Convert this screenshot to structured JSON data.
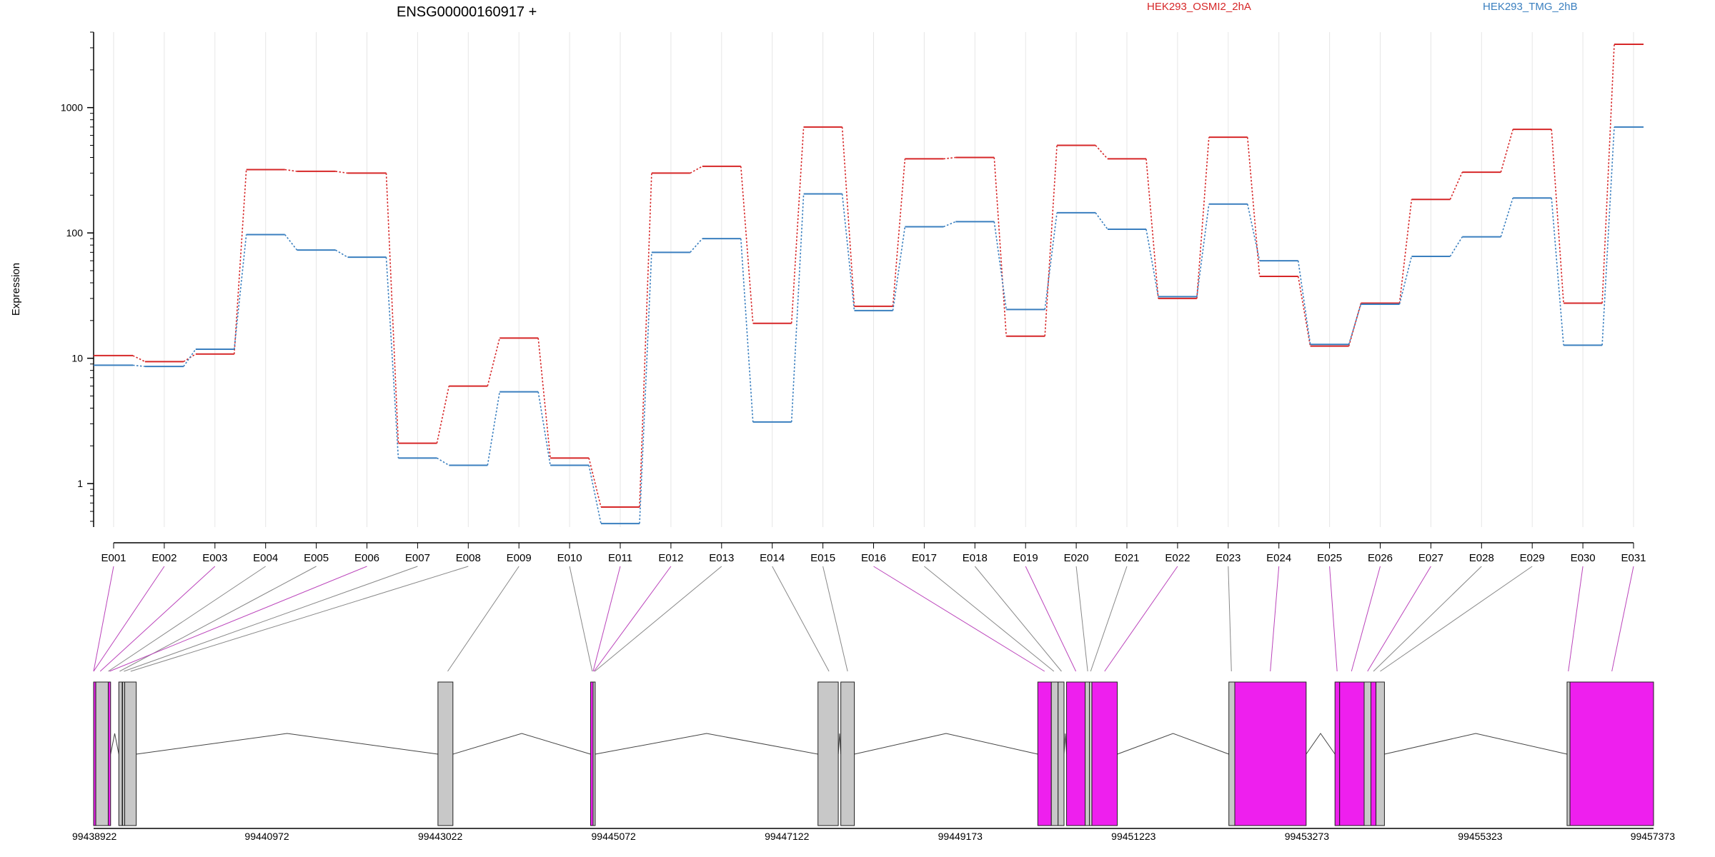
{
  "chart_data": {
    "type": "line",
    "title": "ENSG00000160917 +",
    "ylabel": "Expression",
    "yscale": "log",
    "ylim": [
      0.45,
      4000
    ],
    "y_ticks": [
      {
        "value": 1,
        "label": "1"
      },
      {
        "value": 10,
        "label": "10"
      },
      {
        "value": 100,
        "label": "100"
      },
      {
        "value": 1000,
        "label": "1000"
      }
    ],
    "categories": [
      "E001",
      "E002",
      "E003",
      "E004",
      "E005",
      "E006",
      "E007",
      "E008",
      "E009",
      "E010",
      "E011",
      "E012",
      "E013",
      "E014",
      "E015",
      "E016",
      "E017",
      "E018",
      "E019",
      "E020",
      "E021",
      "E022",
      "E023",
      "E024",
      "E025",
      "E026",
      "E027",
      "E028",
      "E029",
      "E030",
      "E031"
    ],
    "series": [
      {
        "name": "HEK293_OSMI2_2hA",
        "color": "#d62728",
        "values": [
          10.5,
          9.4,
          10.8,
          320,
          310,
          300,
          2.1,
          6.0,
          14.5,
          1.6,
          0.65,
          300,
          340,
          19,
          700,
          26,
          390,
          400,
          15,
          500,
          390,
          30,
          580,
          45,
          12.5,
          27.5,
          185,
          305,
          670,
          27.5,
          3200
        ]
      },
      {
        "name": "HEK293_TMG_2hB",
        "color": "#3a7fbf",
        "values": [
          8.8,
          8.6,
          11.8,
          97,
          73,
          64,
          1.6,
          1.4,
          5.4,
          1.4,
          0.48,
          70,
          90,
          3.1,
          205,
          24,
          112,
          123,
          24.5,
          145,
          107,
          31,
          170,
          60,
          12.9,
          27,
          65,
          93,
          190,
          12.7,
          700
        ]
      }
    ],
    "legend_position": "top",
    "grid": "vertical-only"
  },
  "gene_model": {
    "coord_min": 99438922,
    "coord_max": 99457373,
    "coordinate_labels": [
      "99438922",
      "99440972",
      "99443022",
      "99445072",
      "99447122",
      "99449173",
      "99451223",
      "99453273",
      "99455323",
      "99457373"
    ],
    "colors": {
      "exon_default": "#c8c8c8",
      "exon_highlight": "#ee1fee",
      "link_default": "#888888",
      "link_highlight": "#bb44bb"
    },
    "exon_coords": [
      [
        99438922,
        99438948,
        "highlight"
      ],
      [
        99438948,
        99439095,
        "default"
      ],
      [
        99439095,
        99439123,
        "highlight"
      ],
      [
        99439220,
        99439260,
        "default"
      ],
      [
        99439265,
        99439290,
        "default"
      ],
      [
        99439290,
        99439426,
        "default"
      ],
      [
        99442995,
        99443172,
        "default"
      ],
      [
        99444800,
        99444830,
        "highlight"
      ],
      [
        99444830,
        99444855,
        "default"
      ],
      [
        99447490,
        99447730,
        "default"
      ],
      [
        99447760,
        99447920,
        "default"
      ],
      [
        99450090,
        99450250,
        "highlight"
      ],
      [
        99450250,
        99450330,
        "default"
      ],
      [
        99450330,
        99450400,
        "default"
      ],
      [
        99450430,
        99450650,
        "highlight"
      ],
      [
        99450650,
        99450700,
        "default"
      ],
      [
        99450700,
        99450730,
        "default"
      ],
      [
        99450730,
        99451030,
        "highlight"
      ],
      [
        99452350,
        99452420,
        "default"
      ],
      [
        99452420,
        99453264,
        "highlight"
      ],
      [
        99453605,
        99453660,
        "highlight"
      ],
      [
        99453660,
        99453950,
        "highlight"
      ],
      [
        99453950,
        99454030,
        "default"
      ],
      [
        99454030,
        99454090,
        "highlight"
      ],
      [
        99454090,
        99454190,
        "default"
      ],
      [
        99456350,
        99456385,
        "default"
      ],
      [
        99456385,
        99457373,
        "highlight"
      ]
    ],
    "exon_links": [
      [
        99438922,
        "highlight"
      ],
      [
        99438922,
        "highlight"
      ],
      [
        99439000,
        "highlight"
      ],
      [
        99439095,
        "default"
      ],
      [
        99439230,
        "default"
      ],
      [
        99439110,
        "highlight"
      ],
      [
        99439280,
        "default"
      ],
      [
        99439360,
        "default"
      ],
      [
        99443110,
        "default"
      ],
      [
        99444820,
        "default"
      ],
      [
        99444830,
        "highlight"
      ],
      [
        99444840,
        "highlight"
      ],
      [
        99444850,
        "default"
      ],
      [
        99447620,
        "default"
      ],
      [
        99447840,
        "default"
      ],
      [
        99450170,
        "highlight"
      ],
      [
        99450280,
        "default"
      ],
      [
        99450370,
        "default"
      ],
      [
        99450540,
        "highlight"
      ],
      [
        99450680,
        "default"
      ],
      [
        99450715,
        "default"
      ],
      [
        99450880,
        "highlight"
      ],
      [
        99452380,
        "default"
      ],
      [
        99452840,
        "highlight"
      ],
      [
        99453630,
        "highlight"
      ],
      [
        99453800,
        "highlight"
      ],
      [
        99453990,
        "highlight"
      ],
      [
        99454060,
        "default"
      ],
      [
        99454140,
        "default"
      ],
      [
        99456365,
        "highlight"
      ],
      [
        99456880,
        "highlight"
      ]
    ]
  },
  "legend": {
    "series_a": "HEK293_OSMI2_2hA",
    "series_b": "HEK293_TMG_2hB"
  }
}
